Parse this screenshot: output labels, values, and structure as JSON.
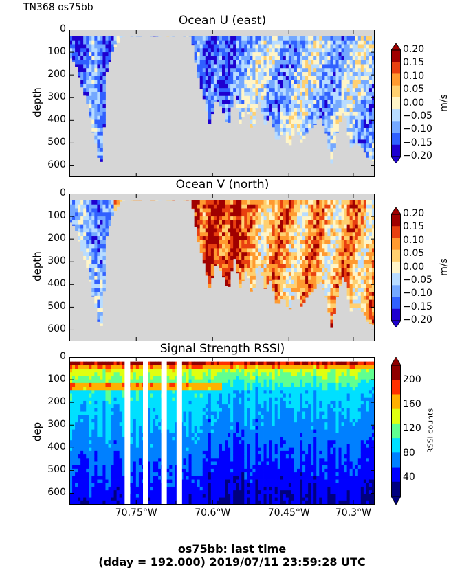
{
  "header": {
    "cruise_label": "TN368 os75bb"
  },
  "footer": {
    "line1": "os75bb: last time",
    "line2": "(dday = 192.000) 2019/07/11 23:59:28 UTC"
  },
  "chart_data": [
    {
      "type": "heatmap",
      "title": "Ocean U (east)",
      "ylabel": "depth",
      "xlabel": "",
      "ylim": [
        650,
        0
      ],
      "yticks": [
        "0",
        "100",
        "200",
        "300",
        "400",
        "500",
        "600"
      ],
      "colorbar": {
        "label": "m/s",
        "ticks": [
          "0.20",
          "0.15",
          "0.10",
          "0.05",
          "0.00",
          "−0.05",
          "−0.10",
          "−0.15",
          "−0.20"
        ],
        "range": [
          -0.2,
          0.2
        ],
        "colors": [
          "#1e00d0",
          "#3060ff",
          "#74a8ff",
          "#b8dcff",
          "#fff5c8",
          "#ffd070",
          "#ff9a30",
          "#e84010",
          "#a00000"
        ]
      },
      "bottom_depth_profile": [
        [
          0,
          120
        ],
        [
          0.02,
          150
        ],
        [
          0.04,
          250
        ],
        [
          0.06,
          330
        ],
        [
          0.08,
          470
        ],
        [
          0.09,
          520
        ],
        [
          0.1,
          600
        ],
        [
          0.11,
          560
        ],
        [
          0.12,
          200
        ],
        [
          0.14,
          100
        ],
        [
          0.17,
          30
        ],
        [
          0.4,
          30
        ],
        [
          0.42,
          200
        ],
        [
          0.44,
          300
        ],
        [
          0.46,
          420
        ],
        [
          0.48,
          300
        ],
        [
          0.5,
          350
        ],
        [
          0.52,
          430
        ],
        [
          0.54,
          280
        ],
        [
          0.56,
          420
        ],
        [
          0.58,
          330
        ],
        [
          0.6,
          460
        ],
        [
          0.62,
          300
        ],
        [
          0.64,
          420
        ],
        [
          0.66,
          380
        ],
        [
          0.68,
          500
        ],
        [
          0.7,
          450
        ],
        [
          0.72,
          520
        ],
        [
          0.74,
          430
        ],
        [
          0.76,
          500
        ],
        [
          0.78,
          450
        ],
        [
          0.8,
          430
        ],
        [
          0.82,
          380
        ],
        [
          0.84,
          450
        ],
        [
          0.86,
          600
        ],
        [
          0.88,
          430
        ],
        [
          0.9,
          350
        ],
        [
          0.92,
          520
        ],
        [
          0.94,
          500
        ],
        [
          0.96,
          520
        ],
        [
          0.98,
          570
        ],
        [
          1.0,
          580
        ]
      ],
      "gap_columns": [
        0.19,
        0.25,
        0.31,
        0.36
      ]
    },
    {
      "type": "heatmap",
      "title": "Ocean V (north)",
      "ylabel": "depth",
      "xlabel": "",
      "ylim": [
        650,
        0
      ],
      "yticks": [
        "0",
        "100",
        "200",
        "300",
        "400",
        "500",
        "600"
      ],
      "colorbar": {
        "label": "m/s",
        "ticks": [
          "0.20",
          "0.15",
          "0.10",
          "0.05",
          "0.00",
          "−0.05",
          "−0.10",
          "−0.15",
          "−0.20"
        ],
        "range": [
          -0.2,
          0.2
        ],
        "colors": [
          "#1e00d0",
          "#3060ff",
          "#74a8ff",
          "#b8dcff",
          "#fff5c8",
          "#ffd070",
          "#ff9a30",
          "#e84010",
          "#a00000"
        ]
      },
      "bottom_depth_profile": [
        [
          0,
          120
        ],
        [
          0.02,
          150
        ],
        [
          0.04,
          250
        ],
        [
          0.06,
          330
        ],
        [
          0.08,
          470
        ],
        [
          0.09,
          520
        ],
        [
          0.1,
          600
        ],
        [
          0.11,
          560
        ],
        [
          0.12,
          200
        ],
        [
          0.14,
          100
        ],
        [
          0.17,
          30
        ],
        [
          0.4,
          30
        ],
        [
          0.42,
          200
        ],
        [
          0.44,
          300
        ],
        [
          0.46,
          420
        ],
        [
          0.48,
          300
        ],
        [
          0.5,
          350
        ],
        [
          0.52,
          430
        ],
        [
          0.54,
          280
        ],
        [
          0.56,
          420
        ],
        [
          0.58,
          330
        ],
        [
          0.6,
          460
        ],
        [
          0.62,
          300
        ],
        [
          0.64,
          420
        ],
        [
          0.66,
          380
        ],
        [
          0.68,
          500
        ],
        [
          0.7,
          450
        ],
        [
          0.72,
          520
        ],
        [
          0.74,
          430
        ],
        [
          0.76,
          500
        ],
        [
          0.78,
          450
        ],
        [
          0.8,
          430
        ],
        [
          0.82,
          380
        ],
        [
          0.84,
          450
        ],
        [
          0.86,
          600
        ],
        [
          0.88,
          430
        ],
        [
          0.9,
          350
        ],
        [
          0.92,
          520
        ],
        [
          0.94,
          500
        ],
        [
          0.96,
          520
        ],
        [
          0.98,
          570
        ],
        [
          1.0,
          580
        ]
      ],
      "gap_columns": [
        0.19,
        0.25,
        0.31,
        0.36
      ]
    },
    {
      "type": "heatmap",
      "title": "Signal Strength RSSI)",
      "ylabel": "dep",
      "xlabel": "",
      "ylim": [
        650,
        0
      ],
      "yticks": [
        "0",
        "100",
        "200",
        "300",
        "400",
        "500",
        "600"
      ],
      "xticks": [
        "70.75°W",
        "70.6°W",
        "70.45°W",
        "70.3°W"
      ],
      "colorbar": {
        "label": "RSSI counts",
        "ticks": [
          "200",
          "160",
          "120",
          "80",
          "40"
        ],
        "range": [
          10,
          225
        ],
        "colors": [
          "#00007f",
          "#0000ff",
          "#0080ff",
          "#00e0ff",
          "#60ff90",
          "#e0ff10",
          "#ffb000",
          "#ff3000",
          "#8f0000"
        ]
      },
      "gap_columns": [
        0.19,
        0.25,
        0.31,
        0.36
      ]
    }
  ]
}
